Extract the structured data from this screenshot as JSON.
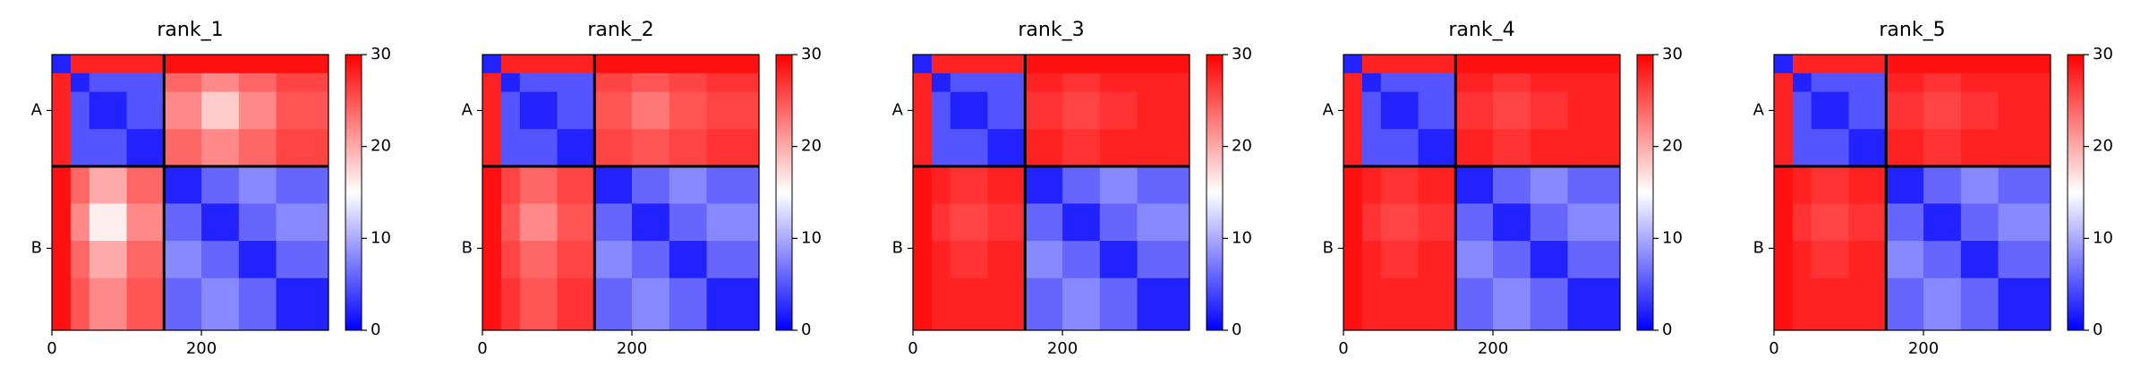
{
  "chart_data": [
    {
      "type": "heatmap",
      "title": "rank_1",
      "xlim": [
        0,
        370
      ],
      "ylim": [
        370,
        0
      ],
      "xticks": [
        0,
        200
      ],
      "yticks": [
        {
          "value": 75,
          "label": "A"
        },
        {
          "value": 260,
          "label": "B"
        }
      ],
      "chain_breaks": [
        150
      ],
      "clim": [
        0,
        30
      ],
      "cticks": [
        0,
        10,
        20,
        30
      ],
      "colors": [
        "#0000ff",
        "#ffffff",
        "#ff0000"
      ],
      "bins": [
        0,
        25,
        50,
        100,
        150,
        200,
        250,
        300,
        370
      ],
      "values": [
        [
          2,
          28,
          28,
          28,
          29,
          29,
          29,
          29
        ],
        [
          28,
          2,
          5,
          5,
          24,
          22,
          24,
          26
        ],
        [
          28,
          5,
          2,
          5,
          22,
          18,
          22,
          25
        ],
        [
          28,
          5,
          5,
          2,
          24,
          22,
          24,
          26
        ],
        [
          29,
          24,
          20,
          24,
          2,
          6,
          8,
          6
        ],
        [
          29,
          22,
          16,
          22,
          6,
          2,
          6,
          8
        ],
        [
          29,
          24,
          20,
          24,
          8,
          6,
          2,
          6
        ],
        [
          29,
          25,
          22,
          25,
          6,
          8,
          6,
          2
        ]
      ]
    },
    {
      "type": "heatmap",
      "title": "rank_2",
      "xlim": [
        0,
        370
      ],
      "ylim": [
        370,
        0
      ],
      "xticks": [
        0,
        200
      ],
      "yticks": [
        {
          "value": 75,
          "label": "A"
        },
        {
          "value": 260,
          "label": "B"
        }
      ],
      "chain_breaks": [
        150
      ],
      "clim": [
        0,
        30
      ],
      "cticks": [
        0,
        10,
        20,
        30
      ],
      "colors": [
        "#0000ff",
        "#ffffff",
        "#ff0000"
      ],
      "bins": [
        0,
        25,
        50,
        100,
        150,
        200,
        250,
        300,
        370
      ],
      "values": [
        [
          2,
          28,
          28,
          28,
          29,
          29,
          29,
          29
        ],
        [
          28,
          2,
          5,
          5,
          26,
          25,
          26,
          27
        ],
        [
          28,
          5,
          2,
          5,
          25,
          23,
          25,
          26
        ],
        [
          28,
          5,
          5,
          2,
          26,
          25,
          26,
          27
        ],
        [
          29,
          26,
          24,
          26,
          2,
          6,
          8,
          6
        ],
        [
          29,
          25,
          22,
          25,
          6,
          2,
          6,
          8
        ],
        [
          29,
          26,
          24,
          26,
          8,
          6,
          2,
          6
        ],
        [
          29,
          27,
          25,
          27,
          6,
          8,
          6,
          2
        ]
      ]
    },
    {
      "type": "heatmap",
      "title": "rank_3",
      "xlim": [
        0,
        370
      ],
      "ylim": [
        370,
        0
      ],
      "xticks": [
        0,
        200
      ],
      "yticks": [
        {
          "value": 75,
          "label": "A"
        },
        {
          "value": 260,
          "label": "B"
        }
      ],
      "chain_breaks": [
        150
      ],
      "clim": [
        0,
        30
      ],
      "cticks": [
        0,
        10,
        20,
        30
      ],
      "colors": [
        "#0000ff",
        "#ffffff",
        "#ff0000"
      ],
      "bins": [
        0,
        25,
        50,
        100,
        150,
        200,
        250,
        300,
        370
      ],
      "values": [
        [
          2,
          28,
          28,
          28,
          29,
          29,
          29,
          29
        ],
        [
          28,
          2,
          5,
          5,
          28,
          27,
          28,
          28
        ],
        [
          28,
          5,
          2,
          5,
          27,
          26,
          27,
          28
        ],
        [
          28,
          5,
          5,
          2,
          28,
          27,
          28,
          28
        ],
        [
          29,
          28,
          27,
          28,
          2,
          6,
          8,
          6
        ],
        [
          29,
          27,
          26,
          27,
          6,
          2,
          6,
          8
        ],
        [
          29,
          28,
          27,
          28,
          8,
          6,
          2,
          6
        ],
        [
          29,
          28,
          28,
          28,
          6,
          8,
          6,
          2
        ]
      ]
    },
    {
      "type": "heatmap",
      "title": "rank_4",
      "xlim": [
        0,
        370
      ],
      "ylim": [
        370,
        0
      ],
      "xticks": [
        0,
        200
      ],
      "yticks": [
        {
          "value": 75,
          "label": "A"
        },
        {
          "value": 260,
          "label": "B"
        }
      ],
      "chain_breaks": [
        150
      ],
      "clim": [
        0,
        30
      ],
      "cticks": [
        0,
        10,
        20,
        30
      ],
      "colors": [
        "#0000ff",
        "#ffffff",
        "#ff0000"
      ],
      "bins": [
        0,
        25,
        50,
        100,
        150,
        200,
        250,
        300,
        370
      ],
      "values": [
        [
          2,
          28,
          28,
          28,
          29,
          29,
          29,
          29
        ],
        [
          28,
          2,
          5,
          5,
          28,
          27,
          28,
          28
        ],
        [
          28,
          5,
          2,
          5,
          27,
          26,
          27,
          28
        ],
        [
          28,
          5,
          5,
          2,
          28,
          27,
          28,
          28
        ],
        [
          29,
          28,
          27,
          28,
          2,
          6,
          8,
          6
        ],
        [
          29,
          27,
          26,
          27,
          6,
          2,
          6,
          8
        ],
        [
          29,
          28,
          27,
          28,
          8,
          6,
          2,
          6
        ],
        [
          29,
          28,
          28,
          28,
          6,
          8,
          6,
          2
        ]
      ]
    },
    {
      "type": "heatmap",
      "title": "rank_5",
      "xlim": [
        0,
        370
      ],
      "ylim": [
        370,
        0
      ],
      "xticks": [
        0,
        200
      ],
      "yticks": [
        {
          "value": 75,
          "label": "A"
        },
        {
          "value": 260,
          "label": "B"
        }
      ],
      "chain_breaks": [
        150
      ],
      "clim": [
        0,
        30
      ],
      "cticks": [
        0,
        10,
        20,
        30
      ],
      "colors": [
        "#0000ff",
        "#ffffff",
        "#ff0000"
      ],
      "bins": [
        0,
        25,
        50,
        100,
        150,
        200,
        250,
        300,
        370
      ],
      "values": [
        [
          2,
          28,
          28,
          28,
          29,
          29,
          29,
          29
        ],
        [
          28,
          2,
          5,
          5,
          28,
          27,
          28,
          28
        ],
        [
          28,
          5,
          2,
          5,
          27,
          26,
          27,
          28
        ],
        [
          28,
          5,
          5,
          2,
          28,
          27,
          28,
          28
        ],
        [
          29,
          28,
          27,
          28,
          2,
          6,
          8,
          6
        ],
        [
          29,
          27,
          26,
          27,
          6,
          2,
          6,
          8
        ],
        [
          29,
          28,
          27,
          28,
          8,
          6,
          2,
          6
        ],
        [
          29,
          28,
          28,
          28,
          6,
          8,
          6,
          2
        ]
      ]
    }
  ]
}
